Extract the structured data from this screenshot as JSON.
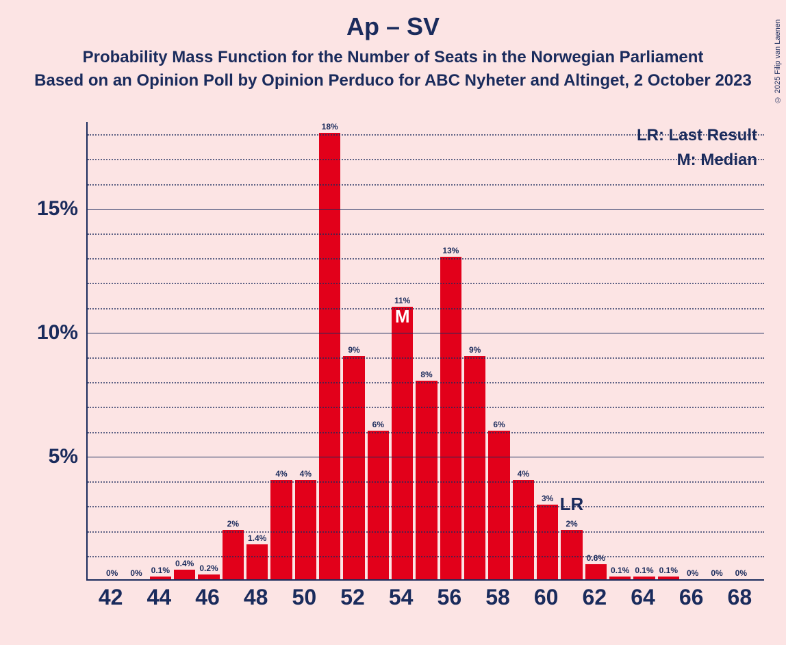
{
  "copyright": "© 2025 Filip van Laenen",
  "title": "Ap – SV",
  "subtitle1": "Probability Mass Function for the Number of Seats in the Norwegian Parliament",
  "subtitle2": "Based on an Opinion Poll by Opinion Perduco for ABC Nyheter and Altinget, 2 October 2023",
  "legend_lr": "LR: Last Result",
  "legend_m": "M: Median",
  "chart": {
    "type": "bar",
    "bar_color": "#e2001a",
    "axis_color": "#1a2b5c",
    "grid_solid_color": "#1a2b5c",
    "grid_dotted_color": "#1a2b5c",
    "background_color": "#fce4e4",
    "title_color": "#1a2b5c",
    "label_fontsize": 12,
    "xlim": [
      42,
      68
    ],
    "ylim": [
      0,
      18.5
    ],
    "ytick_major": [
      5,
      10,
      15
    ],
    "ytick_minor": [
      1,
      2,
      3,
      4,
      6,
      7,
      8,
      9,
      11,
      12,
      13,
      14,
      16,
      17,
      18
    ],
    "ytick_labels": [
      "5%",
      "10%",
      "15%"
    ],
    "xticks": [
      42,
      44,
      46,
      48,
      50,
      52,
      54,
      56,
      58,
      60,
      62,
      64,
      66,
      68
    ],
    "xtick_labels": [
      "42",
      "44",
      "46",
      "48",
      "50",
      "52",
      "54",
      "56",
      "58",
      "60",
      "62",
      "64",
      "66",
      "68"
    ],
    "bar_width_ratio": 0.88,
    "bars": [
      {
        "x": 42,
        "value": 0,
        "label": "0%"
      },
      {
        "x": 43,
        "value": 0,
        "label": "0%"
      },
      {
        "x": 44,
        "value": 0.1,
        "label": "0.1%"
      },
      {
        "x": 45,
        "value": 0.4,
        "label": "0.4%"
      },
      {
        "x": 46,
        "value": 0.2,
        "label": "0.2%"
      },
      {
        "x": 47,
        "value": 2,
        "label": "2%"
      },
      {
        "x": 48,
        "value": 1.4,
        "label": "1.4%"
      },
      {
        "x": 49,
        "value": 4,
        "label": "4%"
      },
      {
        "x": 50,
        "value": 4,
        "label": "4%"
      },
      {
        "x": 51,
        "value": 18,
        "label": "18%"
      },
      {
        "x": 52,
        "value": 9,
        "label": "9%"
      },
      {
        "x": 53,
        "value": 6,
        "label": "6%"
      },
      {
        "x": 54,
        "value": 11,
        "label": "11%"
      },
      {
        "x": 55,
        "value": 8,
        "label": "8%"
      },
      {
        "x": 56,
        "value": 13,
        "label": "13%"
      },
      {
        "x": 57,
        "value": 9,
        "label": "9%"
      },
      {
        "x": 58,
        "value": 6,
        "label": "6%"
      },
      {
        "x": 59,
        "value": 4,
        "label": "4%"
      },
      {
        "x": 60,
        "value": 3,
        "label": "3%"
      },
      {
        "x": 61,
        "value": 2,
        "label": "2%"
      },
      {
        "x": 62,
        "value": 0.6,
        "label": "0.6%"
      },
      {
        "x": 63,
        "value": 0.1,
        "label": "0.1%"
      },
      {
        "x": 64,
        "value": 0.1,
        "label": "0.1%"
      },
      {
        "x": 65,
        "value": 0.1,
        "label": "0.1%"
      },
      {
        "x": 66,
        "value": 0,
        "label": "0%"
      },
      {
        "x": 67,
        "value": 0,
        "label": "0%"
      },
      {
        "x": 68,
        "value": 0,
        "label": "0%"
      }
    ],
    "median_x": 54,
    "median_label": "M",
    "lr_x": 61,
    "lr_label": "LR"
  }
}
